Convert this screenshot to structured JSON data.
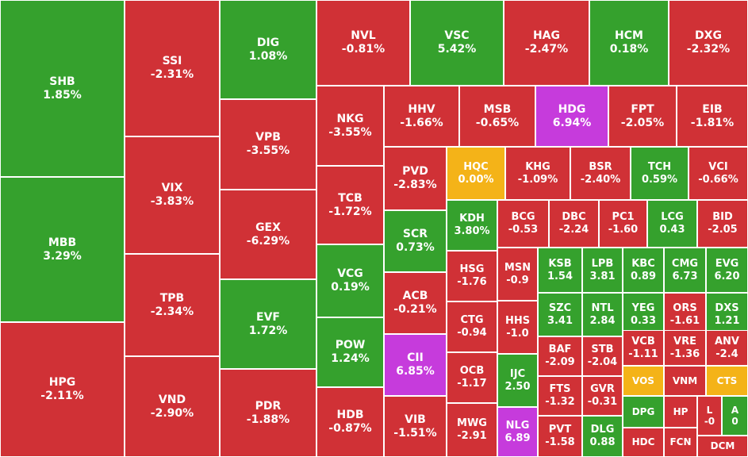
{
  "chart_data": {
    "type": "treemap",
    "colors": {
      "up": "#35a12d",
      "down": "#d03136",
      "flat": "#f4b318",
      "ceiling": "#c63bdc"
    },
    "items": [
      {
        "symbol": "SHB",
        "change": "1.85%",
        "value": 1.85,
        "status": "up"
      },
      {
        "symbol": "MBB",
        "change": "3.29%",
        "value": 3.29,
        "status": "up"
      },
      {
        "symbol": "HPG",
        "change": "-2.11%",
        "value": -2.11,
        "status": "down"
      },
      {
        "symbol": "SSI",
        "change": "-2.31%",
        "value": -2.31,
        "status": "down"
      },
      {
        "symbol": "VIX",
        "change": "-3.83%",
        "value": -3.83,
        "status": "down"
      },
      {
        "symbol": "TPB",
        "change": "-2.34%",
        "value": -2.34,
        "status": "down"
      },
      {
        "symbol": "VND",
        "change": "-2.90%",
        "value": -2.9,
        "status": "down"
      },
      {
        "symbol": "DIG",
        "change": "1.08%",
        "value": 1.08,
        "status": "up"
      },
      {
        "symbol": "VPB",
        "change": "-3.55%",
        "value": -3.55,
        "status": "down"
      },
      {
        "symbol": "GEX",
        "change": "-6.29%",
        "value": -6.29,
        "status": "down"
      },
      {
        "symbol": "EVF",
        "change": "1.72%",
        "value": 1.72,
        "status": "up"
      },
      {
        "symbol": "PDR",
        "change": "-1.88%",
        "value": -1.88,
        "status": "down"
      },
      {
        "symbol": "NVL",
        "change": "-0.81%",
        "value": -0.81,
        "status": "down"
      },
      {
        "symbol": "VSC",
        "change": "5.42%",
        "value": 5.42,
        "status": "up"
      },
      {
        "symbol": "HAG",
        "change": "-2.47%",
        "value": -2.47,
        "status": "down"
      },
      {
        "symbol": "HCM",
        "change": "0.18%",
        "value": 0.18,
        "status": "up"
      },
      {
        "symbol": "DXG",
        "change": "-2.32%",
        "value": -2.32,
        "status": "down"
      },
      {
        "symbol": "NKG",
        "change": "-3.55%",
        "value": -3.55,
        "status": "down"
      },
      {
        "symbol": "TCB",
        "change": "-1.72%",
        "value": -1.72,
        "status": "down"
      },
      {
        "symbol": "VCG",
        "change": "0.19%",
        "value": 0.19,
        "status": "up"
      },
      {
        "symbol": "POW",
        "change": "1.24%",
        "value": 1.24,
        "status": "up"
      },
      {
        "symbol": "HDB",
        "change": "-0.87%",
        "value": -0.87,
        "status": "down"
      },
      {
        "symbol": "HHV",
        "change": "-1.66%",
        "value": -1.66,
        "status": "down"
      },
      {
        "symbol": "MSB",
        "change": "-0.65%",
        "value": -0.65,
        "status": "down"
      },
      {
        "symbol": "HDG",
        "change": "6.94%",
        "value": 6.94,
        "status": "ceiling"
      },
      {
        "symbol": "FPT",
        "change": "-2.05%",
        "value": -2.05,
        "status": "down"
      },
      {
        "symbol": "EIB",
        "change": "-1.81%",
        "value": -1.81,
        "status": "down"
      },
      {
        "symbol": "PVD",
        "change": "-2.83%",
        "value": -2.83,
        "status": "down"
      },
      {
        "symbol": "HQC",
        "change": "0.00%",
        "value": 0.0,
        "status": "flat"
      },
      {
        "symbol": "KHG",
        "change": "-1.09%",
        "value": -1.09,
        "status": "down"
      },
      {
        "symbol": "BSR",
        "change": "-2.40%",
        "value": -2.4,
        "status": "down"
      },
      {
        "symbol": "TCH",
        "change": "0.59%",
        "value": 0.59,
        "status": "up"
      },
      {
        "symbol": "VCI",
        "change": "-0.66%",
        "value": -0.66,
        "status": "down"
      },
      {
        "symbol": "SCR",
        "change": "0.73%",
        "value": 0.73,
        "status": "up"
      },
      {
        "symbol": "ACB",
        "change": "-0.21%",
        "value": -0.21,
        "status": "down"
      },
      {
        "symbol": "CII",
        "change": "6.85%",
        "value": 6.85,
        "status": "ceiling"
      },
      {
        "symbol": "VIB",
        "change": "-1.51%",
        "value": -1.51,
        "status": "down"
      },
      {
        "symbol": "KDH",
        "change": "3.80%",
        "value": 3.8,
        "status": "up"
      },
      {
        "symbol": "HSG",
        "change": "-1.76",
        "value": -1.76,
        "status": "down"
      },
      {
        "symbol": "CTG",
        "change": "-0.94",
        "value": -0.94,
        "status": "down"
      },
      {
        "symbol": "OCB",
        "change": "-1.17",
        "value": -1.17,
        "status": "down"
      },
      {
        "symbol": "MWG",
        "change": "-2.91",
        "value": -2.91,
        "status": "down"
      },
      {
        "symbol": "BCG",
        "change": "-0.53",
        "value": -0.53,
        "status": "down"
      },
      {
        "symbol": "DBC",
        "change": "-2.24",
        "value": -2.24,
        "status": "down"
      },
      {
        "symbol": "PC1",
        "change": "-1.60",
        "value": -1.6,
        "status": "down"
      },
      {
        "symbol": "LCG",
        "change": "0.43",
        "value": 0.43,
        "status": "up"
      },
      {
        "symbol": "BID",
        "change": "-2.05",
        "value": -2.05,
        "status": "down"
      },
      {
        "symbol": "MSN",
        "change": "-0.9",
        "value": -0.9,
        "status": "down"
      },
      {
        "symbol": "HHS",
        "change": "-1.0",
        "value": -1.0,
        "status": "down"
      },
      {
        "symbol": "IJC",
        "change": "2.50",
        "value": 2.5,
        "status": "up"
      },
      {
        "symbol": "NLG",
        "change": "6.89",
        "value": 6.89,
        "status": "ceiling"
      },
      {
        "symbol": "KSB",
        "change": "1.54",
        "value": 1.54,
        "status": "up"
      },
      {
        "symbol": "LPB",
        "change": "3.81",
        "value": 3.81,
        "status": "up"
      },
      {
        "symbol": "KBC",
        "change": "0.89",
        "value": 0.89,
        "status": "up"
      },
      {
        "symbol": "CMG",
        "change": "6.73",
        "value": 6.73,
        "status": "up"
      },
      {
        "symbol": "EVG",
        "change": "6.20",
        "value": 6.2,
        "status": "up"
      },
      {
        "symbol": "SZC",
        "change": "3.41",
        "value": 3.41,
        "status": "up"
      },
      {
        "symbol": "NTL",
        "change": "2.84",
        "value": 2.84,
        "status": "up"
      },
      {
        "symbol": "YEG",
        "change": "0.33",
        "value": 0.33,
        "status": "up"
      },
      {
        "symbol": "ORS",
        "change": "-1.61",
        "value": -1.61,
        "status": "down"
      },
      {
        "symbol": "DXS",
        "change": "1.21",
        "value": 1.21,
        "status": "up"
      },
      {
        "symbol": "BAF",
        "change": "-2.09",
        "value": -2.09,
        "status": "down"
      },
      {
        "symbol": "STB",
        "change": "-2.04",
        "value": -2.04,
        "status": "down"
      },
      {
        "symbol": "VCB",
        "change": "-1.11",
        "value": -1.11,
        "status": "down"
      },
      {
        "symbol": "VRE",
        "change": "-1.36",
        "value": -1.36,
        "status": "down"
      },
      {
        "symbol": "ANV",
        "change": "-2.4",
        "value": -2.4,
        "status": "down"
      },
      {
        "symbol": "FTS",
        "change": "-1.32",
        "value": -1.32,
        "status": "down"
      },
      {
        "symbol": "GVR",
        "change": "-0.31",
        "value": -0.31,
        "status": "down"
      },
      {
        "symbol": "VOS",
        "change": "",
        "status": "flat"
      },
      {
        "symbol": "VNM",
        "change": "",
        "status": "down"
      },
      {
        "symbol": "CTS",
        "change": "",
        "status": "flat"
      },
      {
        "symbol": "PVT",
        "change": "-1.58",
        "value": -1.58,
        "status": "down"
      },
      {
        "symbol": "DLG",
        "change": "0.88",
        "value": 0.88,
        "status": "up"
      },
      {
        "symbol": "DPG",
        "change": "",
        "status": "up"
      },
      {
        "symbol": "HP",
        "change": "",
        "status": "down"
      },
      {
        "symbol": "L",
        "change": "-0",
        "status": "down"
      },
      {
        "symbol": "A",
        "change": "0",
        "status": "up"
      },
      {
        "symbol": "HDC",
        "change": "",
        "status": "down"
      },
      {
        "symbol": "FCN",
        "change": "",
        "status": "down"
      },
      {
        "symbol": "DCM",
        "change": "",
        "status": "down"
      }
    ]
  }
}
